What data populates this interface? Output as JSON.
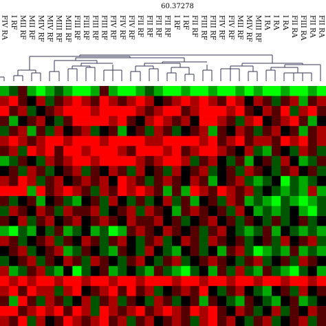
{
  "chart_data": {
    "type": "heatmap",
    "title": "60.37278",
    "categories": [
      "FIV RA",
      "I RF",
      "MII RF",
      "MII RF",
      "MIV RF",
      "MIV RF",
      "MIII RF",
      "MIII RF",
      "FIII RF",
      "FIII RF",
      "FIII RF",
      "FIII RF",
      "FIV RF",
      "FIV RF",
      "FIV RF",
      "FII RF",
      "FII RF",
      "FII RF",
      "FII RF",
      "I RF",
      "I RF",
      "FII RF",
      "FIII RF",
      "FIII RF",
      "FIV RF",
      "FIV RF",
      "MII RF",
      "MIV RF",
      "MIII RF",
      "I RA",
      "I RA",
      "I RA",
      "FII RA",
      "FIII RA",
      "FII RA",
      "FII RA"
    ],
    "zlim": [
      -3,
      3
    ],
    "colors": {
      "low": "#00ff00",
      "mid": "#000000",
      "high": "#ff0000"
    },
    "values": [
      [
        -2,
        -1,
        1,
        -2,
        -3,
        -2,
        -1,
        -2,
        -3,
        -3,
        -2,
        1,
        -2,
        -3,
        -3,
        -2,
        -1,
        -2,
        -3,
        -3,
        -2,
        -3,
        -3,
        -2,
        -3,
        -3,
        -2,
        -3,
        -2,
        -3,
        -3,
        -2,
        -3,
        -3,
        -2,
        -3
      ],
      [
        2,
        3,
        1,
        0,
        2,
        -1,
        1,
        2,
        3,
        2,
        1,
        3,
        2,
        1,
        2,
        3,
        2,
        0,
        1,
        2,
        3,
        2,
        3,
        2,
        1,
        3,
        2,
        0,
        2,
        1,
        -1,
        1,
        2,
        -2,
        1,
        2
      ],
      [
        3,
        1,
        2,
        -1,
        0,
        1,
        2,
        3,
        3,
        3,
        2,
        3,
        3,
        3,
        3,
        2,
        1,
        2,
        3,
        3,
        1,
        2,
        3,
        3,
        3,
        2,
        3,
        1,
        0,
        2,
        1,
        3,
        -1,
        2,
        3,
        1
      ],
      [
        1,
        -2,
        0,
        1,
        2,
        0,
        -1,
        1,
        3,
        3,
        3,
        3,
        2,
        3,
        1,
        0,
        2,
        3,
        2,
        1,
        2,
        0,
        3,
        3,
        2,
        1,
        -1,
        2,
        3,
        0,
        1,
        2,
        3,
        1,
        -2,
        0
      ],
      [
        -1,
        1,
        2,
        -2,
        1,
        -1,
        2,
        0,
        1,
        2,
        -1,
        0,
        1,
        -2,
        0,
        1,
        -1,
        2,
        1,
        -1,
        0,
        1,
        2,
        -2,
        1,
        0,
        2,
        1,
        -1,
        1,
        2,
        0,
        1,
        -2,
        1,
        2
      ],
      [
        2,
        3,
        2,
        1,
        2,
        3,
        3,
        2,
        3,
        3,
        3,
        2,
        3,
        3,
        3,
        3,
        2,
        2,
        3,
        3,
        3,
        3,
        2,
        3,
        1,
        2,
        3,
        1,
        2,
        2,
        1,
        3,
        2,
        3,
        1,
        2
      ],
      [
        1,
        2,
        -1,
        3,
        2,
        3,
        1,
        3,
        3,
        2,
        3,
        3,
        3,
        2,
        1,
        3,
        3,
        3,
        2,
        3,
        1,
        2,
        3,
        3,
        2,
        1,
        0,
        2,
        -1,
        -2,
        1,
        0,
        -1,
        2,
        1,
        -1
      ],
      [
        -2,
        -1,
        1,
        0,
        -1,
        2,
        1,
        2,
        3,
        3,
        2,
        3,
        3,
        3,
        3,
        2,
        1,
        2,
        3,
        3,
        2,
        -1,
        1,
        2,
        0,
        -1,
        1,
        -2,
        0,
        1,
        -1,
        2,
        0,
        -2,
        -1,
        1
      ],
      [
        0,
        1,
        -1,
        2,
        1,
        -1,
        0,
        1,
        2,
        -1,
        1,
        0,
        2,
        1,
        -1,
        2,
        0,
        1,
        -1,
        2,
        0,
        1,
        2,
        -1,
        0,
        1,
        -1,
        2,
        1,
        0,
        -1,
        1,
        2,
        0,
        1,
        -1
      ],
      [
        2,
        1,
        3,
        2,
        -1,
        1,
        2,
        0,
        1,
        2,
        1,
        2,
        0,
        3,
        2,
        1,
        -1,
        1,
        2,
        1,
        0,
        2,
        1,
        -2,
        0,
        1,
        2,
        -1,
        -2,
        -1,
        0,
        -3,
        -1,
        -2,
        -1,
        0
      ],
      [
        3,
        3,
        3,
        -2,
        3,
        1,
        2,
        3,
        2,
        1,
        -1,
        2,
        1,
        3,
        2,
        3,
        2,
        1,
        -2,
        1,
        -2,
        3,
        2,
        1,
        3,
        2,
        1,
        2,
        -1,
        0,
        -1,
        -2,
        -1,
        -2,
        2,
        -2
      ],
      [
        1,
        -1,
        0,
        1,
        -2,
        0,
        1,
        -1,
        -2,
        0,
        1,
        -1,
        2,
        0,
        -1,
        1,
        -1,
        0,
        2,
        -1,
        1,
        -2,
        0,
        1,
        -1,
        2,
        1,
        -2,
        -1,
        -2,
        -3,
        -1,
        -2,
        -3,
        -2,
        -1
      ],
      [
        -1,
        2,
        1,
        0,
        2,
        1,
        -1,
        2,
        1,
        1,
        2,
        -1,
        0,
        1,
        2,
        -1,
        2,
        1,
        0,
        -2,
        1,
        2,
        1,
        0,
        1,
        -1,
        2,
        0,
        -2,
        -1,
        -2,
        -1,
        0,
        -2,
        -3,
        -1
      ],
      [
        1,
        0,
        2,
        -1,
        1,
        2,
        0,
        1,
        2,
        0,
        1,
        2,
        1,
        0,
        2,
        1,
        1,
        2,
        0,
        1,
        -1,
        0,
        1,
        2,
        0,
        1,
        -1,
        1,
        0,
        -1,
        1,
        -1,
        0,
        1,
        -1,
        0
      ],
      [
        -2,
        -3,
        -1,
        -2,
        0,
        -1,
        1,
        -2,
        -1,
        0,
        -2,
        -1,
        -3,
        -2,
        1,
        2,
        1,
        0,
        2,
        1,
        0,
        1,
        -1,
        1,
        2,
        0,
        -1,
        -2,
        -1,
        1,
        -2,
        0,
        -1,
        -2,
        -1,
        -2
      ],
      [
        2,
        1,
        -1,
        0,
        1,
        2,
        -1,
        1,
        0,
        2,
        1,
        -1,
        1,
        2,
        0,
        -1,
        1,
        2,
        -1,
        0,
        2,
        1,
        -1,
        2,
        1,
        0,
        1,
        -1,
        0,
        1,
        -1,
        2,
        0,
        1,
        2,
        -1
      ],
      [
        0,
        1,
        2,
        -1,
        0,
        1,
        2,
        -2,
        -1,
        1,
        0,
        -1,
        -2,
        1,
        0,
        -1,
        2,
        0,
        -1,
        -2,
        0,
        1,
        -1,
        0,
        -2,
        1,
        2,
        -1,
        -3,
        -2,
        -1,
        -2,
        1,
        -2,
        -1,
        -2
      ],
      [
        -1,
        0,
        1,
        2,
        -1,
        1,
        0,
        2,
        1,
        -1,
        2,
        1,
        0,
        -1,
        1,
        2,
        0,
        -1,
        1,
        2,
        -1,
        0,
        1,
        2,
        1,
        0,
        -1,
        1,
        2,
        -1,
        0,
        1,
        -1,
        2,
        1,
        0
      ],
      [
        2,
        -2,
        -1,
        1,
        2,
        -1,
        -2,
        0,
        -3,
        -1,
        0,
        1,
        -2,
        -1,
        0,
        -1,
        -2,
        1,
        -1,
        -2,
        -3,
        -1,
        0,
        -2,
        1,
        -1,
        2,
        -1,
        -2,
        1,
        -1,
        -2,
        -3,
        -1,
        0,
        -2
      ],
      [
        3,
        2,
        3,
        2,
        3,
        3,
        2,
        3,
        3,
        2,
        3,
        3,
        2,
        3,
        3,
        2,
        3,
        3,
        3,
        2,
        3,
        3,
        2,
        3,
        3,
        2,
        3,
        3,
        2,
        3,
        3,
        2,
        3,
        3,
        2,
        3
      ],
      [
        2,
        3,
        1,
        3,
        2,
        2,
        -1,
        2,
        3,
        0,
        1,
        2,
        3,
        1,
        3,
        1,
        2,
        -1,
        0,
        1,
        2,
        1,
        3,
        0,
        -1,
        1,
        2,
        0,
        -1,
        -2,
        0,
        1,
        -1,
        2,
        0,
        1
      ],
      [
        1,
        -2,
        3,
        1,
        -1,
        2,
        1,
        -1,
        0,
        2,
        -1,
        1,
        2,
        -1,
        1,
        0,
        -1,
        2,
        1,
        -1,
        0,
        1,
        -2,
        1,
        0,
        -1,
        -2,
        1,
        0,
        -1,
        -2,
        0,
        1,
        -2,
        -1,
        0
      ],
      [
        3,
        3,
        1,
        2,
        3,
        2,
        3,
        1,
        3,
        2,
        -1,
        3,
        2,
        1,
        2,
        3,
        1,
        2,
        3,
        2,
        1,
        3,
        2,
        3,
        1,
        0,
        2,
        1,
        -1,
        0,
        2,
        -1,
        1,
        0,
        2,
        1
      ],
      [
        2,
        1,
        3,
        -1,
        2,
        0,
        1,
        3,
        2,
        1,
        2,
        3,
        1,
        2,
        -1,
        1,
        2,
        0,
        1,
        2,
        1,
        -1,
        2,
        3,
        1,
        2,
        0,
        -1,
        1,
        2,
        -1,
        0,
        1,
        2,
        -1,
        1
      ]
    ]
  }
}
